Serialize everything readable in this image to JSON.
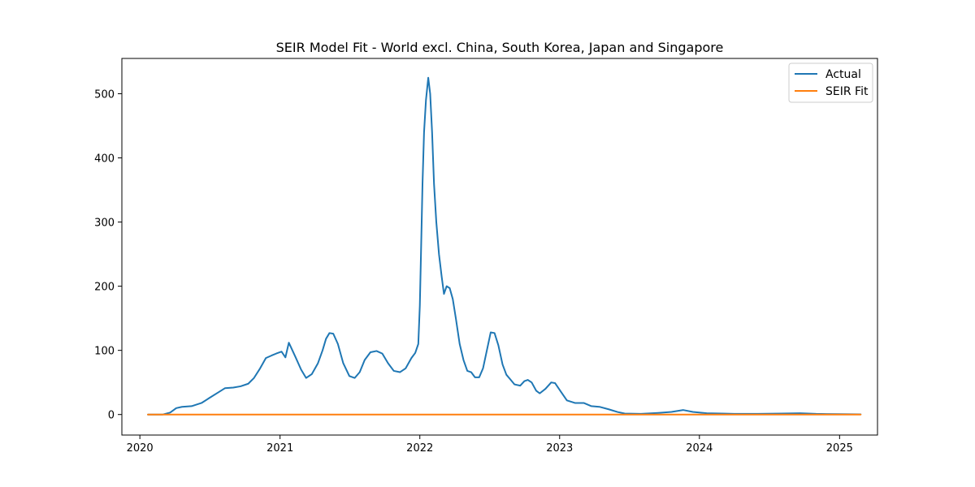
{
  "chart_data": {
    "type": "line",
    "title": "SEIR Model Fit - World excl. China, South Korea, Japan and Singapore",
    "xlabel": "",
    "ylabel": "",
    "xlim": [
      "2019-11-15",
      "2025-04-10"
    ],
    "ylim": [
      -32,
      555
    ],
    "x_ticks": [
      "2020",
      "2021",
      "2022",
      "2023",
      "2024",
      "2025"
    ],
    "y_ticks": [
      0,
      100,
      200,
      300,
      400,
      500
    ],
    "grid": false,
    "legend_position": "top-right",
    "series": [
      {
        "name": "Actual",
        "color": "#1f77b4",
        "points": [
          [
            "2020-01-22",
            0
          ],
          [
            "2020-03-01",
            0
          ],
          [
            "2020-03-20",
            3
          ],
          [
            "2020-04-05",
            10
          ],
          [
            "2020-04-20",
            12
          ],
          [
            "2020-05-15",
            13
          ],
          [
            "2020-06-10",
            18
          ],
          [
            "2020-07-01",
            26
          ],
          [
            "2020-07-25",
            35
          ],
          [
            "2020-08-10",
            41
          ],
          [
            "2020-09-01",
            42
          ],
          [
            "2020-09-20",
            44
          ],
          [
            "2020-10-10",
            48
          ],
          [
            "2020-10-25",
            57
          ],
          [
            "2020-11-10",
            72
          ],
          [
            "2020-11-25",
            88
          ],
          [
            "2020-12-10",
            92
          ],
          [
            "2020-12-22",
            95
          ],
          [
            "2021-01-05",
            98
          ],
          [
            "2021-01-15",
            89
          ],
          [
            "2021-01-24",
            112
          ],
          [
            "2021-02-10",
            90
          ],
          [
            "2021-02-25",
            70
          ],
          [
            "2021-03-10",
            57
          ],
          [
            "2021-03-25",
            63
          ],
          [
            "2021-04-10",
            80
          ],
          [
            "2021-04-22",
            100
          ],
          [
            "2021-05-01",
            118
          ],
          [
            "2021-05-10",
            127
          ],
          [
            "2021-05-20",
            126
          ],
          [
            "2021-06-01",
            110
          ],
          [
            "2021-06-15",
            80
          ],
          [
            "2021-07-01",
            60
          ],
          [
            "2021-07-15",
            57
          ],
          [
            "2021-07-28",
            66
          ],
          [
            "2021-08-10",
            85
          ],
          [
            "2021-08-25",
            97
          ],
          [
            "2021-09-10",
            99
          ],
          [
            "2021-09-25",
            95
          ],
          [
            "2021-10-10",
            80
          ],
          [
            "2021-10-25",
            68
          ],
          [
            "2021-11-10",
            66
          ],
          [
            "2021-11-25",
            72
          ],
          [
            "2021-12-10",
            88
          ],
          [
            "2021-12-20",
            96
          ],
          [
            "2021-12-28",
            110
          ],
          [
            "2022-01-01",
            170
          ],
          [
            "2022-01-04",
            250
          ],
          [
            "2022-01-08",
            360
          ],
          [
            "2022-01-12",
            440
          ],
          [
            "2022-01-17",
            490
          ],
          [
            "2022-01-23",
            525
          ],
          [
            "2022-01-28",
            500
          ],
          [
            "2022-02-02",
            440
          ],
          [
            "2022-02-07",
            360
          ],
          [
            "2022-02-13",
            300
          ],
          [
            "2022-02-20",
            250
          ],
          [
            "2022-02-27",
            215
          ],
          [
            "2022-03-05",
            188
          ],
          [
            "2022-03-12",
            200
          ],
          [
            "2022-03-20",
            197
          ],
          [
            "2022-03-28",
            180
          ],
          [
            "2022-04-05",
            150
          ],
          [
            "2022-04-15",
            110
          ],
          [
            "2022-04-25",
            85
          ],
          [
            "2022-05-05",
            68
          ],
          [
            "2022-05-15",
            66
          ],
          [
            "2022-05-25",
            58
          ],
          [
            "2022-06-05",
            58
          ],
          [
            "2022-06-15",
            72
          ],
          [
            "2022-06-25",
            100
          ],
          [
            "2022-07-05",
            128
          ],
          [
            "2022-07-15",
            127
          ],
          [
            "2022-07-25",
            108
          ],
          [
            "2022-08-05",
            78
          ],
          [
            "2022-08-15",
            62
          ],
          [
            "2022-08-25",
            55
          ],
          [
            "2022-09-05",
            47
          ],
          [
            "2022-09-20",
            45
          ],
          [
            "2022-10-01",
            52
          ],
          [
            "2022-10-10",
            54
          ],
          [
            "2022-10-20",
            50
          ],
          [
            "2022-11-01",
            37
          ],
          [
            "2022-11-10",
            33
          ],
          [
            "2022-11-25",
            40
          ],
          [
            "2022-12-10",
            50
          ],
          [
            "2022-12-20",
            49
          ],
          [
            "2023-01-05",
            35
          ],
          [
            "2023-01-20",
            22
          ],
          [
            "2023-02-10",
            18
          ],
          [
            "2023-03-05",
            18
          ],
          [
            "2023-03-25",
            13
          ],
          [
            "2023-04-15",
            12
          ],
          [
            "2023-05-10",
            8
          ],
          [
            "2023-06-01",
            4
          ],
          [
            "2023-06-20",
            1.5
          ],
          [
            "2023-08-01",
            1
          ],
          [
            "2023-09-15",
            2.5
          ],
          [
            "2023-10-20",
            4
          ],
          [
            "2023-11-20",
            7
          ],
          [
            "2023-12-15",
            4
          ],
          [
            "2024-01-20",
            2
          ],
          [
            "2024-03-01",
            1.5
          ],
          [
            "2024-04-01",
            1
          ],
          [
            "2024-06-01",
            1
          ],
          [
            "2024-08-01",
            1.5
          ],
          [
            "2024-09-20",
            2
          ],
          [
            "2024-11-01",
            1
          ],
          [
            "2025-01-01",
            0.5
          ],
          [
            "2025-02-25",
            0.3
          ]
        ]
      },
      {
        "name": "SEIR Fit",
        "color": "#ff7f0e",
        "points": [
          [
            "2020-01-22",
            0
          ],
          [
            "2025-02-25",
            0
          ]
        ]
      }
    ]
  }
}
